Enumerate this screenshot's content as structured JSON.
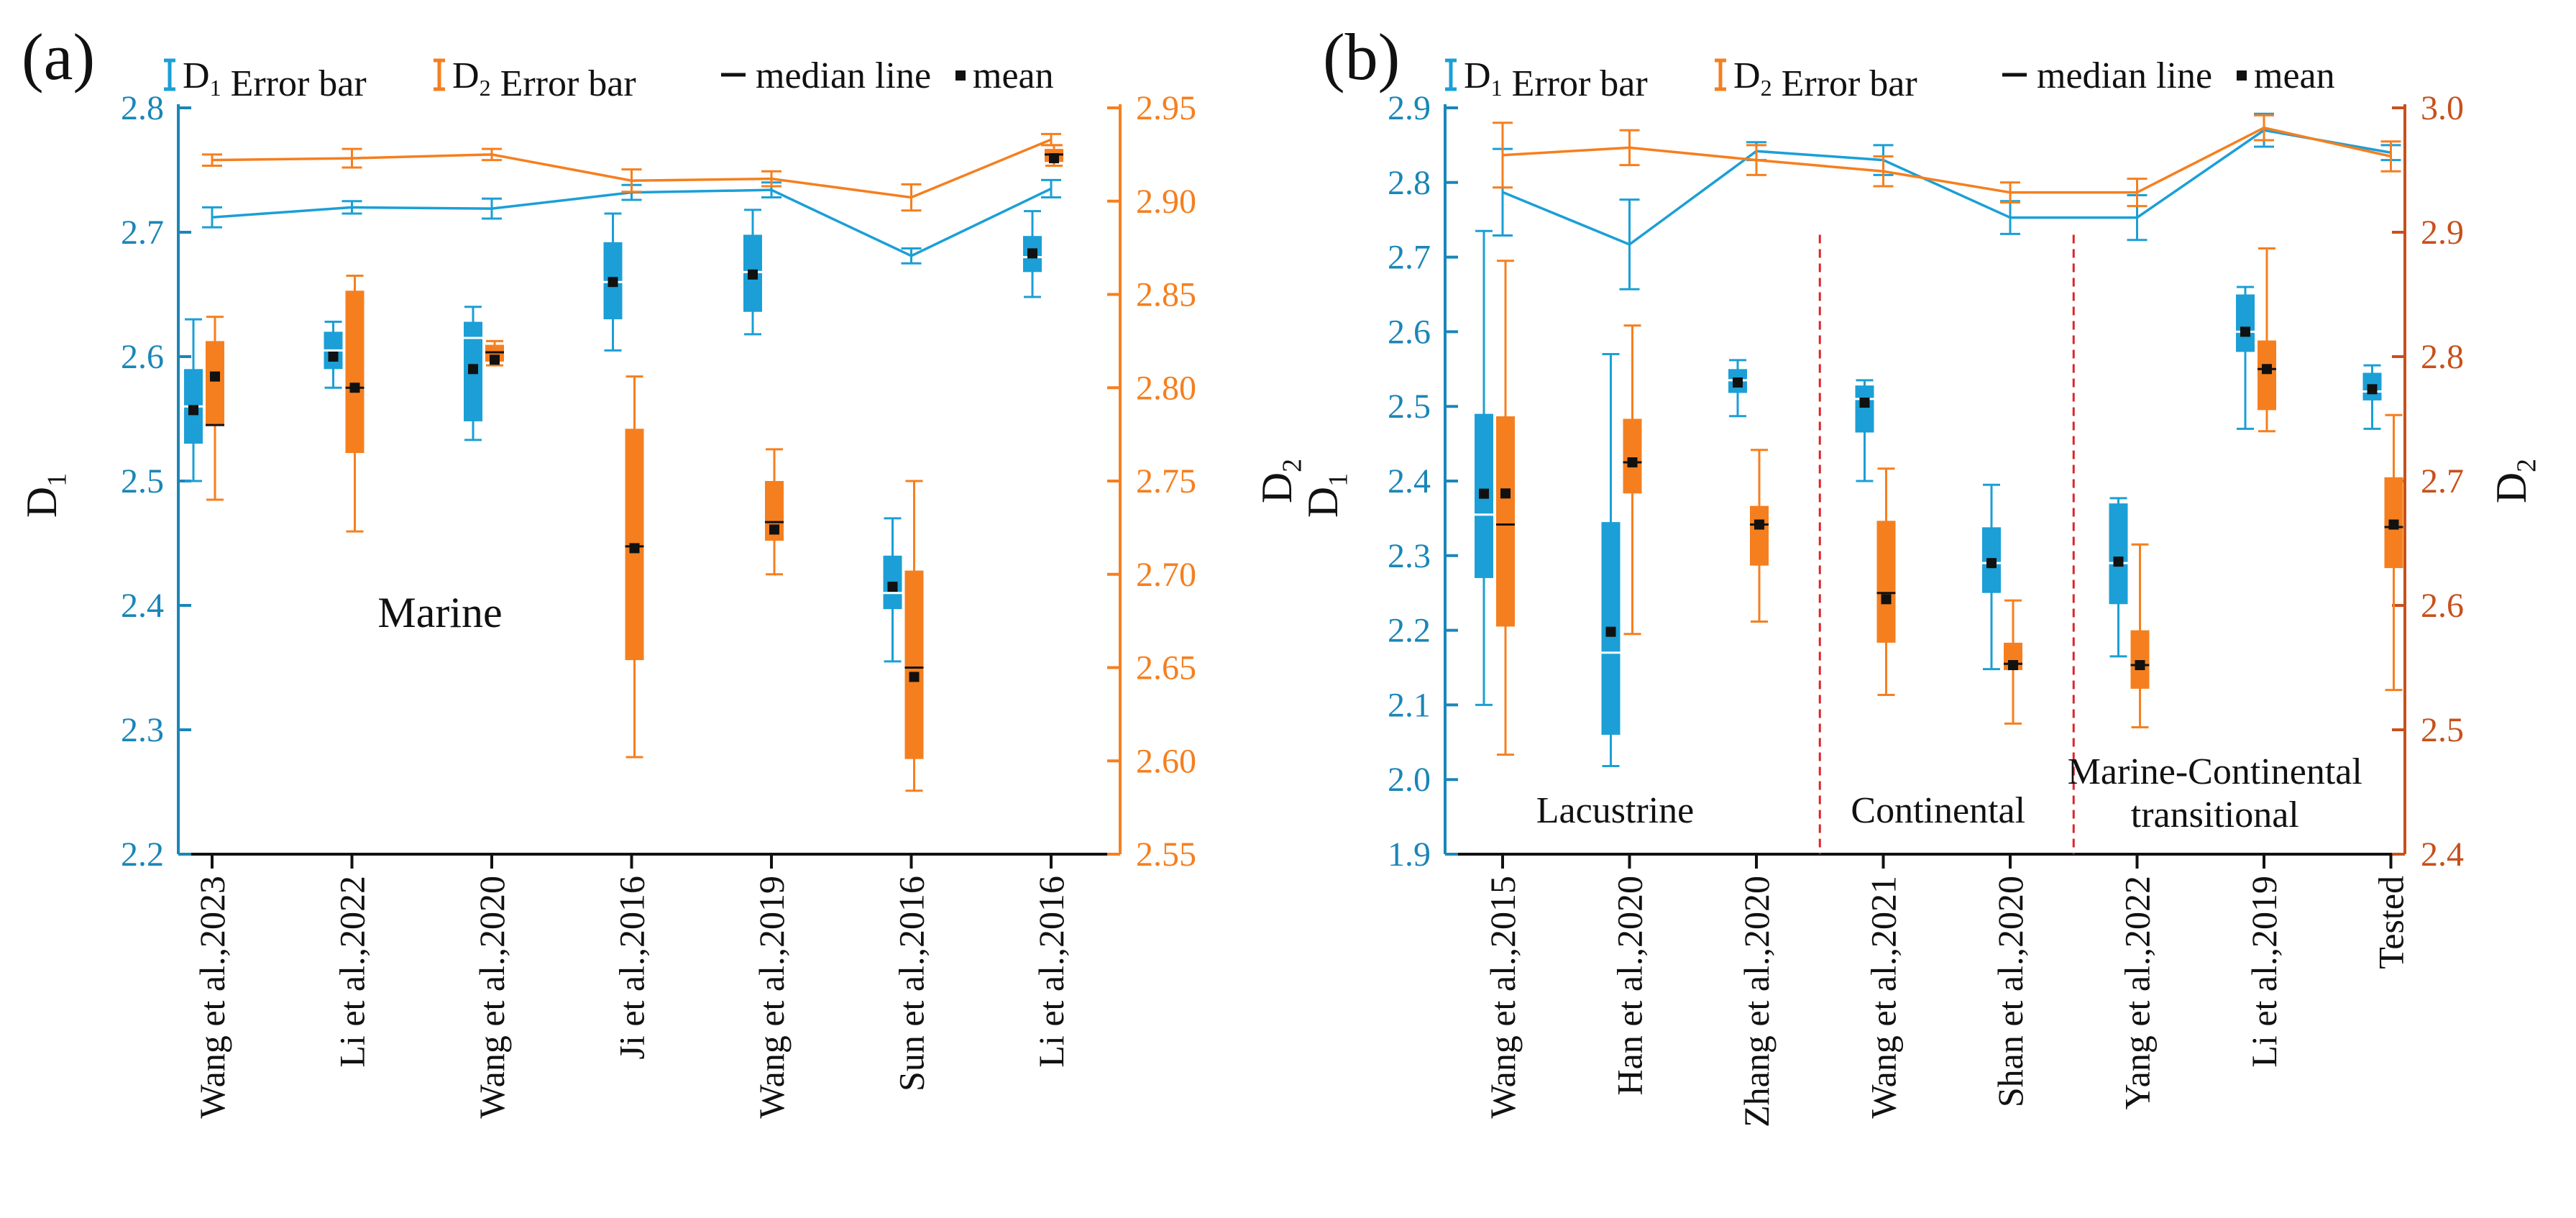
{
  "colors": {
    "d1": "#1B9FD6",
    "d2": "#F57F1F",
    "d2_axis": "#C8501C",
    "axis_left": "#1A86B8",
    "divider": "#D9262B",
    "mean": "#111111",
    "median_d2": "#111111",
    "median_d1": "#ffffff"
  },
  "legend": {
    "d1_prefix": "D",
    "d1_sub": "1",
    "d1_suffix": " Error bar",
    "d2_prefix": "D",
    "d2_sub": "2",
    "d2_suffix": " Error bar",
    "median": "median line",
    "mean": "mean"
  },
  "chart_data": [
    {
      "type": "box",
      "panel_label": "(a)",
      "region_label": "Marine",
      "y_left_label": "D",
      "y_left_sub": "1",
      "y_right_label": "D",
      "y_right_sub": "2",
      "ylim_left": [
        2.2,
        2.8
      ],
      "ylim_right": [
        2.55,
        2.95
      ],
      "yticks_left": [
        "2.2",
        "2.3",
        "2.4",
        "2.5",
        "2.6",
        "2.7",
        "2.8"
      ],
      "yticks_right": [
        "2.55",
        "2.60",
        "2.65",
        "2.70",
        "2.75",
        "2.80",
        "2.85",
        "2.90",
        "2.95"
      ],
      "categories": [
        "Wang et al.,2023",
        "Li et al.,2022",
        "Wang et al.,2020",
        "Ji et al.,2016",
        "Wang et al.,2019",
        "Sun et al.,2016",
        "Li et al.,2016"
      ],
      "d1_boxes": [
        {
          "whislo": 2.5,
          "q1": 2.53,
          "med": 2.56,
          "q3": 2.59,
          "whishi": 2.63,
          "mean": 2.557
        },
        {
          "whislo": 2.575,
          "q1": 2.59,
          "med": 2.605,
          "q3": 2.62,
          "whishi": 2.628,
          "mean": 2.6
        },
        {
          "whislo": 2.533,
          "q1": 2.548,
          "med": 2.615,
          "q3": 2.628,
          "whishi": 2.64,
          "mean": 2.59
        },
        {
          "whislo": 2.605,
          "q1": 2.63,
          "med": 2.66,
          "q3": 2.692,
          "whishi": 2.715,
          "mean": 2.66
        },
        {
          "whislo": 2.618,
          "q1": 2.636,
          "med": 2.668,
          "q3": 2.698,
          "whishi": 2.718,
          "mean": 2.666
        },
        {
          "whislo": 2.355,
          "q1": 2.397,
          "med": 2.41,
          "q3": 2.44,
          "whishi": 2.47,
          "mean": 2.415
        },
        {
          "whislo": 2.648,
          "q1": 2.668,
          "med": 2.68,
          "q3": 2.697,
          "whishi": 2.717,
          "mean": 2.683
        }
      ],
      "d2_boxes": [
        {
          "whislo": 2.74,
          "q1": 2.78,
          "med": 2.78,
          "q3": 2.825,
          "whishi": 2.838,
          "mean": 2.806
        },
        {
          "whislo": 2.723,
          "q1": 2.765,
          "med": 2.8,
          "q3": 2.852,
          "whishi": 2.86,
          "mean": 2.8
        },
        {
          "whislo": 2.812,
          "q1": 2.814,
          "med": 2.819,
          "q3": 2.823,
          "whishi": 2.825,
          "mean": 2.815
        },
        {
          "whislo": 2.602,
          "q1": 2.654,
          "med": 2.715,
          "q3": 2.778,
          "whishi": 2.806,
          "mean": 2.714
        },
        {
          "whislo": 2.7,
          "q1": 2.718,
          "med": 2.728,
          "q3": 2.75,
          "whishi": 2.767,
          "mean": 2.724
        },
        {
          "whislo": 2.584,
          "q1": 2.601,
          "med": 2.65,
          "q3": 2.702,
          "whishi": 2.75,
          "mean": 2.645
        },
        {
          "whislo": 2.919,
          "q1": 2.921,
          "med": 2.925,
          "q3": 2.928,
          "whishi": 2.93,
          "mean": 2.923
        }
      ],
      "d1_line": {
        "mean": [
          2.712,
          2.72,
          2.719,
          2.732,
          2.734,
          2.681,
          2.735
        ],
        "err": [
          0.008,
          0.005,
          0.008,
          0.006,
          0.006,
          0.006,
          0.007
        ]
      },
      "d2_line": {
        "mean": [
          2.922,
          2.923,
          2.925,
          2.911,
          2.912,
          2.902,
          2.933
        ],
        "err": [
          0.003,
          0.005,
          0.003,
          0.006,
          0.004,
          0.007,
          0.003
        ]
      }
    },
    {
      "type": "box",
      "panel_label": "(b)",
      "group_labels": [
        "Lacustrine",
        "Continental",
        "Marine-Continental",
        "transitional"
      ],
      "y_left_label": "D",
      "y_left_sub": "1",
      "y_right_label": "D",
      "y_right_sub": "2",
      "ylim_left": [
        1.9,
        2.9
      ],
      "ylim_right": [
        2.4,
        3.0
      ],
      "yticks_left": [
        "1.9",
        "2.0",
        "2.1",
        "2.2",
        "2.3",
        "2.4",
        "2.5",
        "2.6",
        "2.7",
        "2.8",
        "2.9"
      ],
      "yticks_right": [
        "2.4",
        "2.5",
        "2.6",
        "2.7",
        "2.8",
        "2.9",
        "3.0"
      ],
      "categories": [
        "Wang et al.,2015",
        "Han et al.,2020",
        "Zhang et al.,2020",
        "Wang et al.,2021",
        "Shan et al.,2020",
        "Yang et al.,2022",
        "Li et al.,2019",
        "Tested"
      ],
      "d1_boxes": [
        {
          "whislo": 2.1,
          "q1": 2.27,
          "med": 2.355,
          "q3": 2.49,
          "whishi": 2.735,
          "mean": 2.383
        },
        {
          "whislo": 2.018,
          "q1": 2.06,
          "med": 2.17,
          "q3": 2.345,
          "whishi": 2.57,
          "mean": 2.198
        },
        {
          "whislo": 2.487,
          "q1": 2.518,
          "med": 2.535,
          "q3": 2.55,
          "whishi": 2.562,
          "mean": 2.532
        },
        {
          "whislo": 2.4,
          "q1": 2.465,
          "med": 2.51,
          "q3": 2.528,
          "whishi": 2.535,
          "mean": 2.505
        },
        {
          "whislo": 2.148,
          "q1": 2.25,
          "med": 2.29,
          "q3": 2.338,
          "whishi": 2.395,
          "mean": 2.29
        },
        {
          "whislo": 2.165,
          "q1": 2.235,
          "med": 2.29,
          "q3": 2.37,
          "whishi": 2.377,
          "mean": 2.292
        },
        {
          "whislo": 2.47,
          "q1": 2.573,
          "med": 2.6,
          "q3": 2.65,
          "whishi": 2.66,
          "mean": 2.6
        },
        {
          "whislo": 2.47,
          "q1": 2.508,
          "med": 2.52,
          "q3": 2.545,
          "whishi": 2.555,
          "mean": 2.523
        }
      ],
      "d2_boxes": [
        {
          "whislo": 2.48,
          "q1": 2.583,
          "med": 2.665,
          "q3": 2.752,
          "whishi": 2.877,
          "mean": 2.69
        },
        {
          "whislo": 2.577,
          "q1": 2.69,
          "med": 2.715,
          "q3": 2.75,
          "whishi": 2.825,
          "mean": 2.715
        },
        {
          "whislo": 2.587,
          "q1": 2.632,
          "med": 2.665,
          "q3": 2.68,
          "whishi": 2.725,
          "mean": 2.665
        },
        {
          "whislo": 2.528,
          "q1": 2.57,
          "med": 2.61,
          "q3": 2.668,
          "whishi": 2.71,
          "mean": 2.605
        },
        {
          "whislo": 2.505,
          "q1": 2.548,
          "med": 2.553,
          "q3": 2.57,
          "whishi": 2.604,
          "mean": 2.552
        },
        {
          "whislo": 2.502,
          "q1": 2.533,
          "med": 2.552,
          "q3": 2.58,
          "whishi": 2.649,
          "mean": 2.552
        },
        {
          "whislo": 2.74,
          "q1": 2.757,
          "med": 2.79,
          "q3": 2.813,
          "whishi": 2.887,
          "mean": 2.79
        },
        {
          "whislo": 2.532,
          "q1": 2.63,
          "med": 2.663,
          "q3": 2.703,
          "whishi": 2.753,
          "mean": 2.665
        }
      ],
      "d1_line": {
        "mean": [
          2.787,
          2.717,
          2.842,
          2.83,
          2.753,
          2.753,
          2.87,
          2.84
        ],
        "err": [
          0.058,
          0.06,
          0.012,
          0.02,
          0.022,
          0.03,
          0.022,
          0.01
        ]
      },
      "d2_line": {
        "mean": [
          2.962,
          2.968,
          2.958,
          2.949,
          2.932,
          2.932,
          2.984,
          2.961
        ],
        "err": [
          0.026,
          0.014,
          0.012,
          0.012,
          0.008,
          0.011,
          0.01,
          0.012
        ]
      },
      "dividers_after": [
        2,
        4
      ]
    }
  ]
}
